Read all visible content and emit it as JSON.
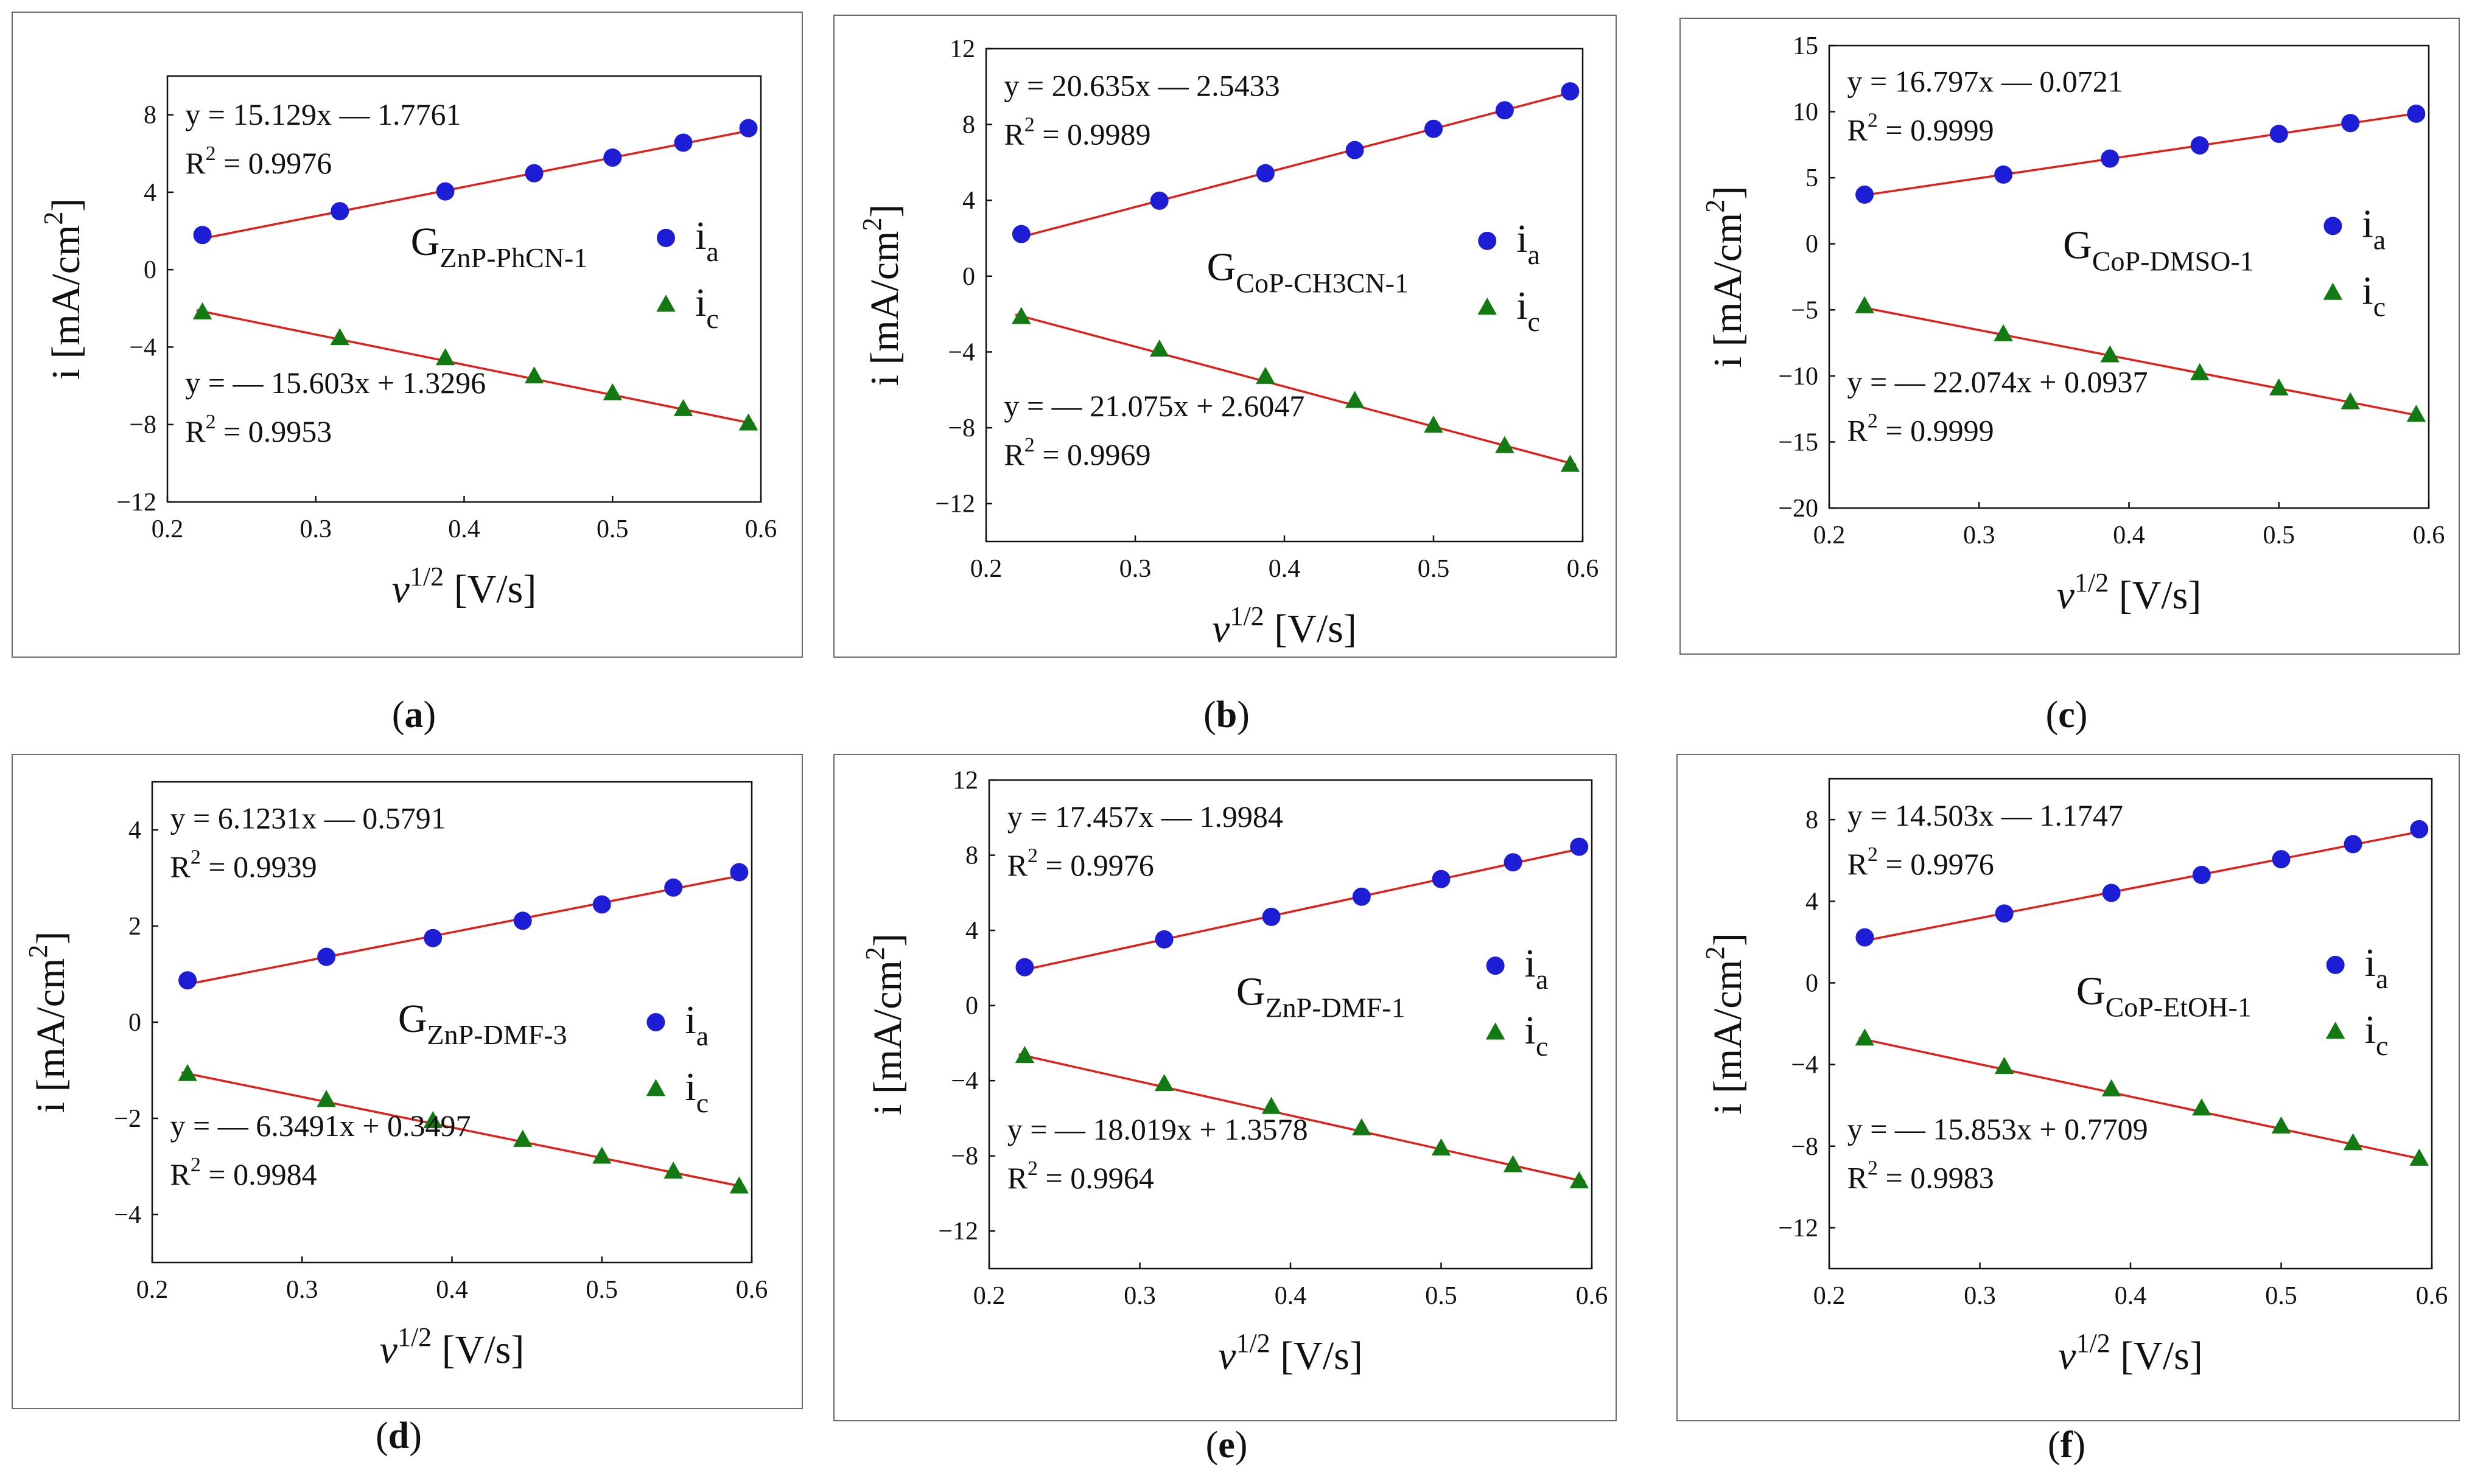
{
  "figure": {
    "panel_labels": [
      "a",
      "b",
      "c",
      "d",
      "e",
      "f"
    ]
  },
  "colors": {
    "anodic": "#1d1dd6",
    "cathodic": "#137a13",
    "fit": "#e0201b",
    "frame": "#6b6b6b"
  },
  "chart_data": [
    {
      "panel": "a",
      "type": "scatter",
      "compound_main": "G",
      "compound_sub": "ZnP-PhCN-1",
      "xlabel_base": "v",
      "xlabel_sup": "1/2",
      "xlabel_unit": " [V/s]",
      "ylabel": "i [mA/cm",
      "ylabel_sup": "2",
      "ylabel_end": "]",
      "xlim": [
        0.2,
        0.6
      ],
      "ylim": [
        -12,
        10
      ],
      "xticks": [
        0.2,
        0.3,
        0.4,
        0.5,
        0.6
      ],
      "yticks": [
        -12,
        -8,
        -4,
        0,
        4,
        8
      ],
      "x": [
        0.2236,
        0.3162,
        0.3873,
        0.4472,
        0.5,
        0.5477,
        0.5916
      ],
      "legend": [
        "i",
        "i"
      ],
      "legend_subs": [
        "a",
        "c"
      ],
      "series": [
        {
          "name": "ia",
          "values": [
            1.79,
            3.02,
            4.04,
            4.98,
            5.79,
            6.56,
            7.31
          ],
          "fit_eq": "y = 15.129x — 1.7761",
          "r2_label": "R",
          "r2_sup": "2",
          "r2_value": " = 0.9976",
          "slope": 15.129,
          "intercept": -1.7761
        },
        {
          "name": "ic",
          "values": [
            -2.21,
            -3.54,
            -4.58,
            -5.52,
            -6.39,
            -7.21,
            -7.95
          ],
          "fit_eq": "y = — 15.603x + 1.3296",
          "r2_label": "R",
          "r2_sup": "2",
          "r2_value": " = 0.9953",
          "slope": -15.603,
          "intercept": 1.3296
        }
      ]
    },
    {
      "panel": "b",
      "type": "scatter",
      "compound_main": "G",
      "compound_sub": "CoP-CH3CN-1",
      "xlabel_base": "v",
      "xlabel_sup": "1/2",
      "xlabel_unit": " [V/s]",
      "ylabel": "i [mA/cm",
      "ylabel_sup": "2",
      "ylabel_end": "]",
      "xlim": [
        0.2,
        0.6
      ],
      "ylim": [
        -14,
        12
      ],
      "xticks": [
        0.2,
        0.3,
        0.4,
        0.5,
        0.6
      ],
      "yticks": [
        -12,
        -8,
        -4,
        0,
        4,
        8,
        12
      ],
      "x": [
        0.2236,
        0.3162,
        0.3873,
        0.4472,
        0.5,
        0.5477,
        0.5916
      ],
      "legend": [
        "i",
        "i"
      ],
      "legend_subs": [
        "a",
        "c"
      ],
      "series": [
        {
          "name": "ia",
          "values": [
            2.22,
            3.98,
            5.43,
            6.65,
            7.77,
            8.75,
            9.75
          ],
          "fit_eq": "y = 20.635x — 2.5433",
          "r2_label": "R",
          "r2_sup": "2",
          "r2_value": " = 0.9989",
          "slope": 20.635,
          "intercept": -2.5433
        },
        {
          "name": "ic",
          "values": [
            -2.16,
            -3.88,
            -5.32,
            -6.59,
            -7.89,
            -8.97,
            -9.96
          ],
          "fit_eq": "y = — 21.075x + 2.6047",
          "r2_label": "R",
          "r2_sup": "2",
          "r2_value": " = 0.9969",
          "slope": -21.075,
          "intercept": 2.6047
        }
      ]
    },
    {
      "panel": "c",
      "type": "scatter",
      "compound_main": "G",
      "compound_sub": "CoP-DMSO-1",
      "xlabel_base": "v",
      "xlabel_sup": "1/2",
      "xlabel_unit": " [V/s]",
      "ylabel": "i [mA/cm",
      "ylabel_sup": "2",
      "ylabel_end": "]",
      "xlim": [
        0.2,
        0.6
      ],
      "ylim": [
        -20,
        15
      ],
      "xticks": [
        0.2,
        0.3,
        0.4,
        0.5,
        0.6
      ],
      "yticks": [
        -20,
        -15,
        -10,
        -5,
        0,
        5,
        10,
        15
      ],
      "x": [
        0.2236,
        0.3162,
        0.3873,
        0.4472,
        0.5,
        0.5477,
        0.5916
      ],
      "legend": [
        "i",
        "i"
      ],
      "legend_subs": [
        "a",
        "c"
      ],
      "series": [
        {
          "name": "ia",
          "values": [
            3.72,
            5.24,
            6.45,
            7.45,
            8.32,
            9.14,
            9.85
          ],
          "fit_eq": "y = 16.797x — 0.0721",
          "r2_label": "R",
          "r2_sup": "2",
          "r2_value": " = 0.9999",
          "slope": 16.797,
          "intercept": -0.0721
        },
        {
          "name": "ic",
          "values": [
            -4.73,
            -6.85,
            -8.45,
            -9.8,
            -10.95,
            -12.0,
            -12.95
          ],
          "fit_eq": "y = — 22.074x + 0.0937",
          "r2_label": "R",
          "r2_sup": "2",
          "r2_value": " = 0.9999",
          "slope": -22.074,
          "intercept": 0.0937
        }
      ]
    },
    {
      "panel": "d",
      "type": "scatter",
      "compound_main": "G",
      "compound_sub": "ZnP-DMF-3",
      "xlabel_base": "v",
      "xlabel_sup": "1/2",
      "xlabel_unit": " [V/s]",
      "ylabel": "i [mA/cm",
      "ylabel_sup": "2",
      "ylabel_end": "]",
      "xlim": [
        0.2,
        0.6
      ],
      "ylim": [
        -5,
        5
      ],
      "xticks": [
        0.2,
        0.3,
        0.4,
        0.5,
        0.6
      ],
      "yticks": [
        -4,
        -2,
        0,
        2,
        4
      ],
      "x": [
        0.2236,
        0.3162,
        0.3873,
        0.4472,
        0.5,
        0.5477,
        0.5916
      ],
      "legend": [
        "i",
        "i"
      ],
      "legend_subs": [
        "a",
        "c"
      ],
      "series": [
        {
          "name": "ia",
          "values": [
            0.87,
            1.36,
            1.75,
            2.11,
            2.45,
            2.8,
            3.12
          ],
          "fit_eq": "y = 6.1231x — 0.5791",
          "r2_label": "R",
          "r2_sup": "2",
          "r2_value": " = 0.9939",
          "slope": 6.1231,
          "intercept": -0.5791
        },
        {
          "name": "ic",
          "values": [
            -1.08,
            -1.62,
            -2.06,
            -2.45,
            -2.8,
            -3.11,
            -3.42
          ],
          "fit_eq": "y = — 6.3491x + 0.3497",
          "r2_label": "R",
          "r2_sup": "2",
          "r2_value": " = 0.9984",
          "slope": -6.3491,
          "intercept": 0.3497
        }
      ]
    },
    {
      "panel": "e",
      "type": "scatter",
      "compound_main": "G",
      "compound_sub": "ZnP-DMF-1",
      "xlabel_base": "v",
      "xlabel_sup": "1/2",
      "xlabel_unit": " [V/s]",
      "ylabel": "i [mA/cm",
      "ylabel_sup": "2",
      "ylabel_end": "]",
      "xlim": [
        0.2,
        0.6
      ],
      "ylim": [
        -14,
        12
      ],
      "xticks": [
        0.2,
        0.3,
        0.4,
        0.5,
        0.6
      ],
      "yticks": [
        -12,
        -8,
        -4,
        0,
        4,
        8,
        12
      ],
      "x": [
        0.2236,
        0.3162,
        0.3873,
        0.4472,
        0.5,
        0.5477,
        0.5916
      ],
      "legend": [
        "i",
        "i"
      ],
      "legend_subs": [
        "a",
        "c"
      ],
      "series": [
        {
          "name": "ia",
          "values": [
            2.04,
            3.52,
            4.72,
            5.79,
            6.73,
            7.62,
            8.45
          ],
          "fit_eq": "y = 17.457x — 1.9984",
          "r2_label": "R",
          "r2_sup": "2",
          "r2_value": " = 0.9976",
          "slope": 17.457,
          "intercept": -1.9984
        },
        {
          "name": "ic",
          "values": [
            -2.69,
            -4.18,
            -5.4,
            -6.54,
            -7.61,
            -8.5,
            -9.36
          ],
          "fit_eq": "y = — 18.019x + 1.3578",
          "r2_label": "R",
          "r2_sup": "2",
          "r2_value": " = 0.9964",
          "slope": -18.019,
          "intercept": 1.3578
        }
      ]
    },
    {
      "panel": "f",
      "type": "scatter",
      "compound_main": "G",
      "compound_sub": "CoP-EtOH-1",
      "xlabel_base": "v",
      "xlabel_sup": "1/2",
      "xlabel_unit": " [V/s]",
      "ylabel": "i [mA/cm",
      "ylabel_sup": "2",
      "ylabel_end": "]",
      "xlim": [
        0.2,
        0.6
      ],
      "ylim": [
        -14,
        10
      ],
      "xticks": [
        0.2,
        0.3,
        0.4,
        0.5,
        0.6
      ],
      "yticks": [
        -12,
        -8,
        -4,
        0,
        4,
        8
      ],
      "x": [
        0.2236,
        0.3162,
        0.3873,
        0.4472,
        0.5,
        0.5477,
        0.5916
      ],
      "legend": [
        "i",
        "i"
      ],
      "legend_subs": [
        "a",
        "c"
      ],
      "series": [
        {
          "name": "ia",
          "values": [
            2.23,
            3.4,
            4.41,
            5.29,
            6.06,
            6.8,
            7.53
          ],
          "fit_eq": "y = 14.503x — 1.1747",
          "r2_label": "R",
          "r2_sup": "2",
          "r2_value": " = 0.9976",
          "slope": 14.503,
          "intercept": -1.1747
        },
        {
          "name": "ic",
          "values": [
            -2.73,
            -4.12,
            -5.22,
            -6.16,
            -7.04,
            -7.86,
            -8.62
          ],
          "fit_eq": "y = — 15.853x + 0.7709",
          "r2_label": "R",
          "r2_sup": "2",
          "r2_value": " = 0.9983",
          "slope": -15.853,
          "intercept": 0.7709
        }
      ]
    }
  ]
}
